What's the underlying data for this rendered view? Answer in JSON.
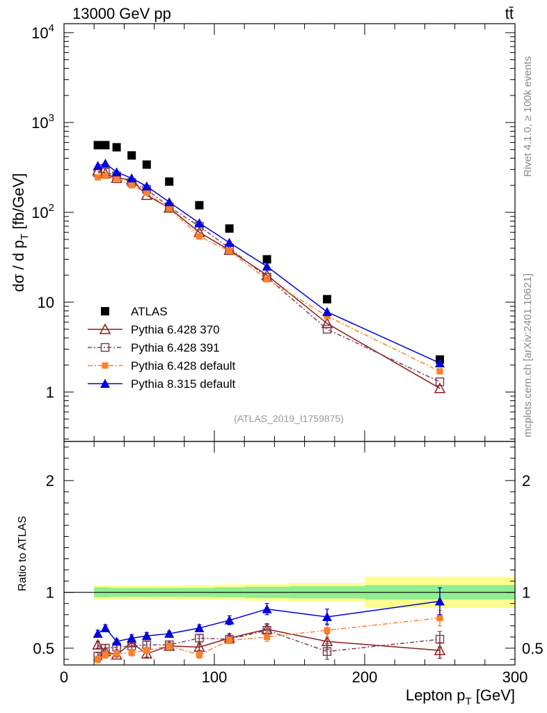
{
  "header": {
    "energy_label": "13000 GeV pp",
    "process_label": "tt̄",
    "side_label_top": "Rivet 4.1.0, ≥ 100k events",
    "side_label_bottom": "mcplots.cern.ch [arXiv:2401.10621]",
    "analysis_id": "(ATLAS_2019_I1759875)"
  },
  "colors": {
    "atlas": "#000000",
    "pythia6_370": "#8b1a1a",
    "pythia6_391": "#7a4050",
    "pythia6_default": "#ff7f2a",
    "pythia8_default": "#0000dd",
    "band_inner": "#90ee90",
    "band_outer": "#ffff90"
  },
  "chart_data": [
    {
      "panel": "main",
      "type": "line",
      "ylabel": "dσ / d p_T [fb/GeV]",
      "xlim": [
        0,
        300
      ],
      "ylim_log10": [
        -0.55,
        4.1
      ],
      "yscale": "log",
      "ytick_labels": [
        "1",
        "10",
        "10^2",
        "10^3",
        "10^4"
      ],
      "ytick_values": [
        1,
        10,
        100,
        1000,
        10000
      ],
      "legend": [
        {
          "key": "atlas",
          "label": "ATLAS"
        },
        {
          "key": "p370",
          "label": "Pythia 6.428 370"
        },
        {
          "key": "p391",
          "label": "Pythia 6.428 391"
        },
        {
          "key": "p6def",
          "label": "Pythia 6.428 default"
        },
        {
          "key": "p8def",
          "label": "Pythia 8.315 default"
        }
      ],
      "x": [
        22.5,
        27.5,
        35,
        45,
        55,
        70,
        90,
        110,
        135,
        175,
        250
      ],
      "series": [
        {
          "key": "atlas",
          "name": "ATLAS",
          "marker": "square-filled",
          "values": [
            560,
            560,
            530,
            430,
            340,
            220,
            120,
            66,
            30,
            10.8,
            2.3
          ]
        },
        {
          "key": "p370",
          "name": "Pythia 6.428 370",
          "marker": "triangle-open",
          "values": [
            290,
            270,
            240,
            230,
            155,
            112,
            60,
            38,
            20,
            5.8,
            1.1
          ]
        },
        {
          "key": "p391",
          "name": "Pythia 6.428 391",
          "marker": "square-open",
          "values": [
            275,
            280,
            255,
            215,
            180,
            115,
            70,
            40,
            19,
            5.0,
            1.3
          ]
        },
        {
          "key": "p6def",
          "name": "Pythia 6.428 default",
          "marker": "square-filled-small",
          "values": [
            245,
            255,
            240,
            200,
            165,
            110,
            54,
            37,
            18,
            7.0,
            1.7
          ]
        },
        {
          "key": "p8def",
          "name": "Pythia 8.315 default",
          "marker": "triangle-filled",
          "values": [
            330,
            350,
            280,
            240,
            195,
            130,
            76,
            46,
            25,
            7.8,
            2.1
          ]
        }
      ]
    },
    {
      "panel": "ratio",
      "type": "line",
      "ylabel": "Ratio to ATLAS",
      "xlabel": "Lepton p_T [GeV]",
      "xlim": [
        0,
        300
      ],
      "ylim": [
        0.35,
        2.35
      ],
      "ytick_labels": [
        "0.5",
        "1",
        "2"
      ],
      "ytick_values": [
        0.5,
        1,
        2
      ],
      "xtick_labels": [
        "0",
        "100",
        "200",
        "300"
      ],
      "xtick_values": [
        0,
        100,
        200,
        300
      ],
      "x": [
        22.5,
        27.5,
        35,
        45,
        55,
        70,
        90,
        110,
        135,
        175,
        250
      ],
      "band": {
        "edges": [
          20,
          25,
          30,
          40,
          50,
          60,
          80,
          100,
          120,
          150,
          200,
          300
        ],
        "inner": [
          0.045,
          0.045,
          0.04,
          0.04,
          0.04,
          0.04,
          0.04,
          0.045,
          0.05,
          0.055,
          0.065
        ],
        "outer": [
          0.065,
          0.065,
          0.06,
          0.06,
          0.06,
          0.06,
          0.065,
          0.07,
          0.075,
          0.085,
          0.14
        ]
      },
      "series": [
        {
          "key": "p370",
          "name": "Pythia 6.428 370",
          "values": [
            0.53,
            0.47,
            0.44,
            0.55,
            0.45,
            0.52,
            0.51,
            0.59,
            0.67,
            0.56,
            0.48
          ],
          "errors": [
            0.03,
            0.03,
            0.02,
            0.03,
            0.03,
            0.02,
            0.03,
            0.04,
            0.05,
            0.07,
            0.07
          ]
        },
        {
          "key": "p391",
          "name": "Pythia 6.428 391",
          "values": [
            0.43,
            0.5,
            0.51,
            0.52,
            0.53,
            0.53,
            0.59,
            0.58,
            0.66,
            0.47,
            0.58
          ],
          "errors": [
            0.03,
            0.03,
            0.02,
            0.03,
            0.03,
            0.02,
            0.03,
            0.03,
            0.05,
            0.07,
            0.07
          ]
        },
        {
          "key": "p6def",
          "name": "Pythia 6.428 default",
          "values": [
            0.4,
            0.44,
            0.45,
            0.46,
            0.48,
            0.52,
            0.44,
            0.57,
            0.6,
            0.66,
            0.77
          ],
          "errors": [
            0.03,
            0.03,
            0.02,
            0.03,
            0.03,
            0.02,
            0.03,
            0.03,
            0.04,
            0.06,
            0.07
          ]
        },
        {
          "key": "p8def",
          "name": "Pythia 8.315 default",
          "values": [
            0.63,
            0.68,
            0.56,
            0.59,
            0.61,
            0.63,
            0.68,
            0.75,
            0.85,
            0.78,
            0.92
          ],
          "errors": [
            0.03,
            0.03,
            0.02,
            0.03,
            0.03,
            0.02,
            0.03,
            0.04,
            0.05,
            0.07,
            0.12
          ]
        }
      ]
    }
  ]
}
